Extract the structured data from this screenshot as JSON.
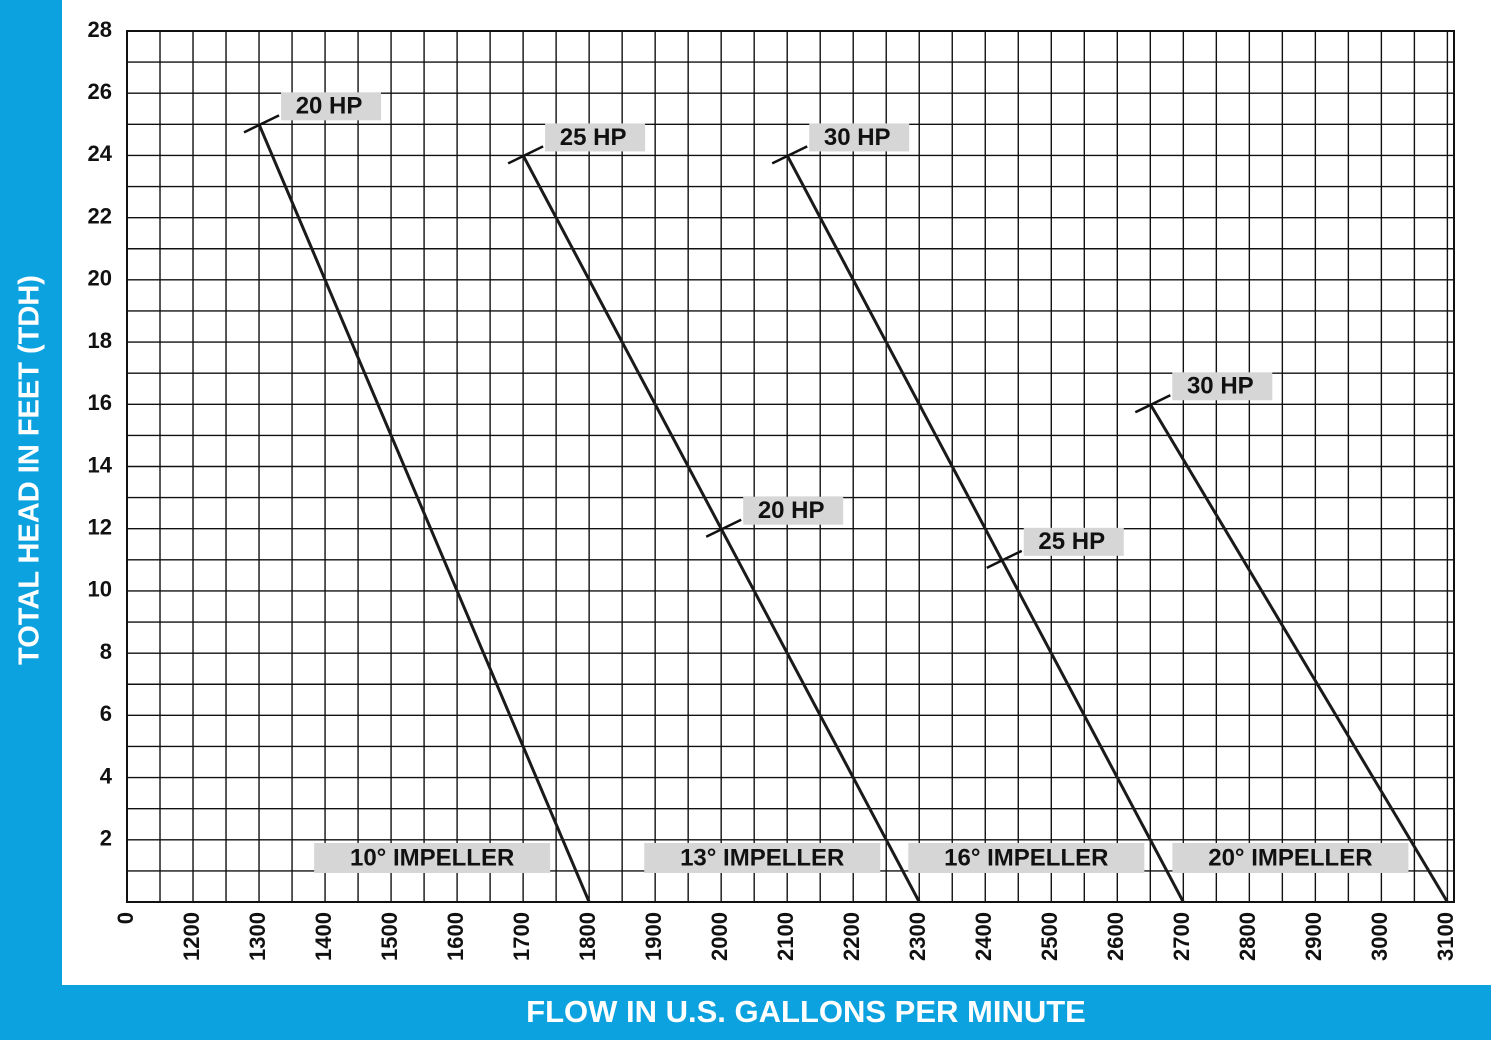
{
  "chart_data": {
    "type": "line",
    "xlabel": "FLOW IN U.S. GALLONS PER MINUTE",
    "ylabel": "TOTAL HEAD IN FEET (TDH)",
    "xlim": [
      1100,
      3110
    ],
    "ylim": [
      0,
      28
    ],
    "xticks": [
      {
        "value": 1100,
        "label": "0"
      },
      1200,
      1300,
      1400,
      1500,
      1600,
      1700,
      1800,
      1900,
      2000,
      2100,
      2200,
      2300,
      2400,
      2500,
      2600,
      2700,
      2800,
      2900,
      3000,
      3100
    ],
    "yticks": [
      2,
      4,
      6,
      8,
      10,
      12,
      14,
      16,
      18,
      20,
      22,
      24,
      26,
      28
    ],
    "minor_xticks": [
      1150,
      1250,
      1350,
      1450,
      1550,
      1650,
      1750,
      1850,
      1950,
      2050,
      2150,
      2250,
      2350,
      2450,
      2550,
      2650,
      2750,
      2850,
      2950,
      3050
    ],
    "minor_yticks": [
      1,
      3,
      5,
      7,
      9,
      11,
      13,
      15,
      17,
      19,
      21,
      23,
      25,
      27
    ],
    "grid": true,
    "series": [
      {
        "name": "10° IMPELLER",
        "color": "#1a1a1a",
        "x": [
          1300,
          1800
        ],
        "values": [
          25,
          0
        ]
      },
      {
        "name": "13° IMPELLER",
        "color": "#1a1a1a",
        "x": [
          1700,
          2300
        ],
        "values": [
          24,
          0
        ]
      },
      {
        "name": "16° IMPELLER",
        "color": "#1a1a1a",
        "x": [
          2100,
          2700
        ],
        "values": [
          24,
          0
        ]
      },
      {
        "name": "20° IMPELLER",
        "color": "#1a1a1a",
        "x": [
          2650,
          3100
        ],
        "values": [
          16,
          0
        ]
      }
    ],
    "annotations": [
      {
        "text": "20 HP",
        "x": 1300,
        "y": 25
      },
      {
        "text": "25 HP",
        "x": 1700,
        "y": 24
      },
      {
        "text": "30 HP",
        "x": 2100,
        "y": 24
      },
      {
        "text": "20 HP",
        "x": 2000,
        "y": 12
      },
      {
        "text": "25 HP",
        "x": 2425,
        "y": 11
      },
      {
        "text": "30 HP",
        "x": 2650,
        "y": 16
      }
    ]
  }
}
